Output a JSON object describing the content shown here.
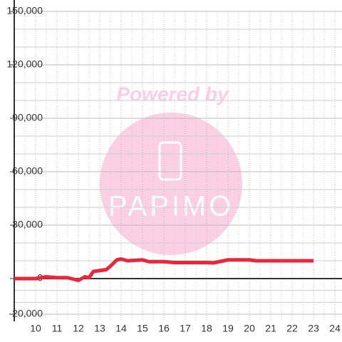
{
  "chart_data": {
    "type": "line",
    "watermark": [
      "Powered by",
      "PAPIMO"
    ],
    "x": [
      9,
      10,
      10.5,
      11,
      11.5,
      12,
      12.3,
      12.5,
      12.7,
      13,
      13.3,
      13.5,
      13.8,
      14,
      14.3,
      15,
      15.3,
      16,
      16.5,
      18,
      18.3,
      19,
      20,
      20.3,
      23
    ],
    "series": [
      {
        "color": "#e8273a",
        "values": [
          0,
          0,
          1000,
          500,
          500,
          -1000,
          1000,
          500,
          4000,
          4500,
          5000,
          7000,
          10500,
          11000,
          10000,
          10500,
          9500,
          9500,
          9000,
          9000,
          8800,
          10500,
          10500,
          10000,
          10000
        ]
      }
    ],
    "xlim": [
      9,
      24.33
    ],
    "xticks": [
      10,
      11,
      12,
      13,
      14,
      15,
      16,
      17,
      18,
      19,
      20,
      21,
      22,
      23,
      24
    ],
    "ylim": [
      -24000,
      150000
    ],
    "yticks": [
      {
        "value": -20000,
        "label": "-20,000"
      },
      0,
      {
        "value": 30000,
        "label": "30,000"
      },
      {
        "value": 60000,
        "label": "60,000"
      },
      {
        "value": 90000,
        "label": "90,000"
      },
      {
        "value": 120000,
        "label": "120,000"
      },
      {
        "value": 150000,
        "label": "150,000"
      }
    ],
    "grid": true
  }
}
